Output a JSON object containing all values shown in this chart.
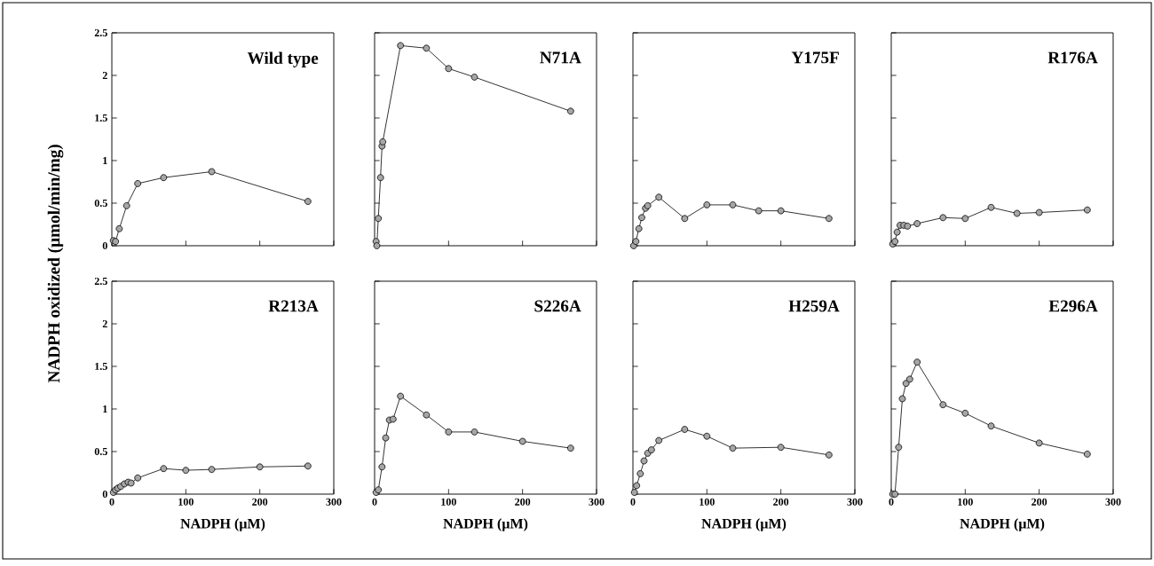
{
  "chart_data": [
    {
      "type": "line",
      "title": "Wild type",
      "ylabel": "NADPH oxidized (µmol/min/mg)",
      "x": [
        2,
        5,
        10,
        20,
        35,
        70,
        135,
        265
      ],
      "values": [
        0.06,
        0.05,
        0.2,
        0.47,
        0.73,
        0.8,
        0.87,
        0.52
      ],
      "color": "#000000",
      "marker": "circle",
      "xlim": [
        0,
        300
      ],
      "ylim": [
        0,
        2.5
      ],
      "xticks": [
        0,
        100,
        200,
        300
      ],
      "yticks": [
        0,
        0.5,
        1,
        1.5,
        2,
        2.5
      ],
      "tick_labels": "y"
    },
    {
      "type": "line",
      "title": "N71A",
      "x": [
        2,
        3,
        5,
        8,
        10,
        11,
        35,
        70,
        100,
        135,
        265
      ],
      "values": [
        0.05,
        0.0,
        0.32,
        0.8,
        1.17,
        1.22,
        2.35,
        2.32,
        2.08,
        1.98,
        1.58
      ],
      "color": "#000000",
      "marker": "circle",
      "xlim": [
        0,
        300
      ],
      "ylim": [
        0,
        2.5
      ],
      "xticks": [
        0,
        100,
        200,
        300
      ],
      "yticks": [
        0,
        0.5,
        1,
        1.5,
        2,
        2.5
      ],
      "tick_labels": false
    },
    {
      "type": "line",
      "title": "Y175F",
      "x": [
        1,
        4,
        8,
        12,
        17,
        20,
        35,
        70,
        100,
        135,
        170,
        200,
        265
      ],
      "values": [
        0.0,
        0.05,
        0.2,
        0.33,
        0.44,
        0.47,
        0.57,
        0.32,
        0.48,
        0.48,
        0.41,
        0.41,
        0.32
      ],
      "color": "#000000",
      "marker": "circle",
      "xlim": [
        0,
        300
      ],
      "ylim": [
        0,
        2.5
      ],
      "xticks": [
        0,
        100,
        200,
        300
      ],
      "yticks": [
        0,
        0.5,
        1,
        1.5,
        2,
        2.5
      ],
      "tick_labels": false
    },
    {
      "type": "line",
      "title": "R176A",
      "x": [
        2,
        5,
        8,
        12,
        17,
        22,
        35,
        70,
        100,
        135,
        170,
        200,
        265
      ],
      "values": [
        0.02,
        0.05,
        0.16,
        0.24,
        0.24,
        0.23,
        0.26,
        0.33,
        0.32,
        0.45,
        0.38,
        0.39,
        0.42
      ],
      "color": "#000000",
      "marker": "circle",
      "xlim": [
        0,
        300
      ],
      "ylim": [
        0,
        2.5
      ],
      "xticks": [
        0,
        100,
        200,
        300
      ],
      "yticks": [
        0,
        0.5,
        1,
        1.5,
        2,
        2.5
      ],
      "tick_labels": false
    },
    {
      "type": "line",
      "title": "R213A",
      "xlabel": "NADPH (µM)",
      "x": [
        2,
        5,
        8,
        12,
        17,
        22,
        26,
        35,
        70,
        100,
        135,
        200,
        265
      ],
      "values": [
        0.02,
        0.05,
        0.07,
        0.09,
        0.12,
        0.14,
        0.13,
        0.19,
        0.3,
        0.28,
        0.29,
        0.32,
        0.33
      ],
      "color": "#000000",
      "marker": "circle",
      "xlim": [
        0,
        300
      ],
      "ylim": [
        0,
        2.5
      ],
      "xticks": [
        0,
        100,
        200,
        300
      ],
      "yticks": [
        0,
        0.5,
        1,
        1.5,
        2,
        2.5
      ]
    },
    {
      "type": "line",
      "title": "S226A",
      "xlabel": "NADPH (µM)",
      "x": [
        2,
        5,
        10,
        15,
        20,
        25,
        35,
        70,
        100,
        135,
        200,
        265
      ],
      "values": [
        0.02,
        0.05,
        0.32,
        0.66,
        0.87,
        0.88,
        1.15,
        0.93,
        0.73,
        0.73,
        0.62,
        0.54
      ],
      "color": "#000000",
      "marker": "circle",
      "xlim": [
        0,
        300
      ],
      "ylim": [
        0,
        2.5
      ],
      "xticks": [
        0,
        100,
        200,
        300
      ],
      "yticks": [
        0,
        0.5,
        1,
        1.5,
        2,
        2.5
      ],
      "tick_labels": "x"
    },
    {
      "type": "line",
      "title": "H259A",
      "xlabel": "NADPH (µM)",
      "x": [
        2,
        5,
        10,
        15,
        20,
        25,
        35,
        70,
        100,
        135,
        200,
        265
      ],
      "values": [
        0.02,
        0.1,
        0.24,
        0.39,
        0.48,
        0.52,
        0.63,
        0.76,
        0.68,
        0.54,
        0.55,
        0.46
      ],
      "color": "#000000",
      "marker": "circle",
      "xlim": [
        0,
        300
      ],
      "ylim": [
        0,
        2.5
      ],
      "xticks": [
        0,
        100,
        200,
        300
      ],
      "yticks": [
        0,
        0.5,
        1,
        1.5,
        2,
        2.5
      ],
      "tick_labels": "x"
    },
    {
      "type": "line",
      "title": "E296A",
      "xlabel": "NADPH (µM)",
      "x": [
        2,
        5,
        10,
        15,
        20,
        25,
        35,
        70,
        100,
        135,
        200,
        265
      ],
      "values": [
        0.0,
        0.0,
        0.55,
        1.12,
        1.3,
        1.35,
        1.55,
        1.05,
        0.95,
        0.8,
        0.6,
        0.47
      ],
      "color": "#000000",
      "marker": "circle",
      "xlim": [
        0,
        300
      ],
      "ylim": [
        0,
        2.5
      ],
      "xticks": [
        0,
        100,
        200,
        300
      ],
      "yticks": [
        0,
        0.5,
        1,
        1.5,
        2,
        2.5
      ],
      "tick_labels": "x"
    }
  ]
}
